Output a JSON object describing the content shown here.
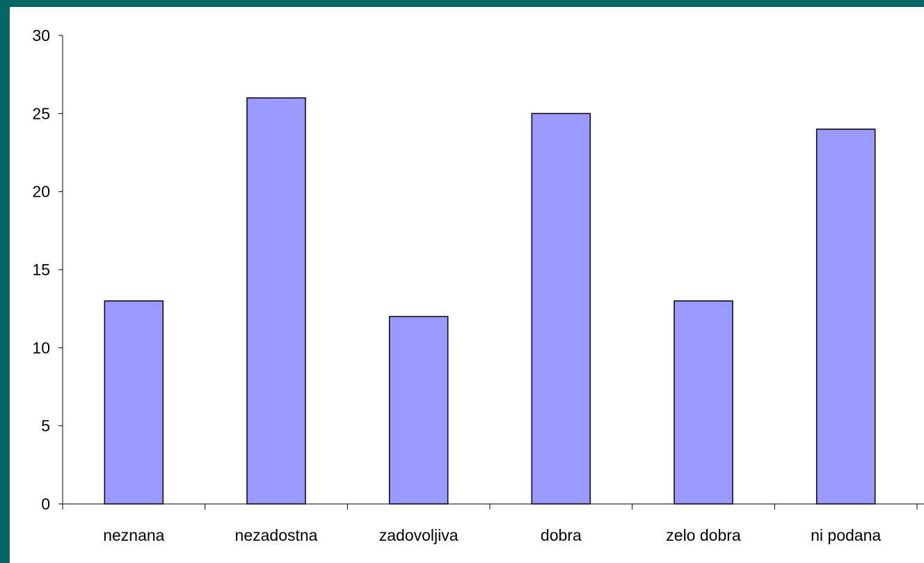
{
  "colors": {
    "slide_background": "#006666",
    "plot_background": "#ffffff",
    "bar_fill": "#9999ff",
    "bar_stroke": "#000000",
    "axis": "#000000"
  },
  "chart_data": {
    "type": "bar",
    "categories": [
      "neznana",
      "nezadostna",
      "zadovoljiva",
      "dobra",
      "zelo dobra",
      "ni podana"
    ],
    "values": [
      13,
      26,
      12,
      25,
      13,
      24
    ],
    "title": "",
    "xlabel": "",
    "ylabel": "",
    "ylim": [
      0,
      30
    ],
    "yticks": [
      0,
      5,
      10,
      15,
      20,
      25,
      30
    ],
    "grid": false,
    "legend": "none"
  }
}
